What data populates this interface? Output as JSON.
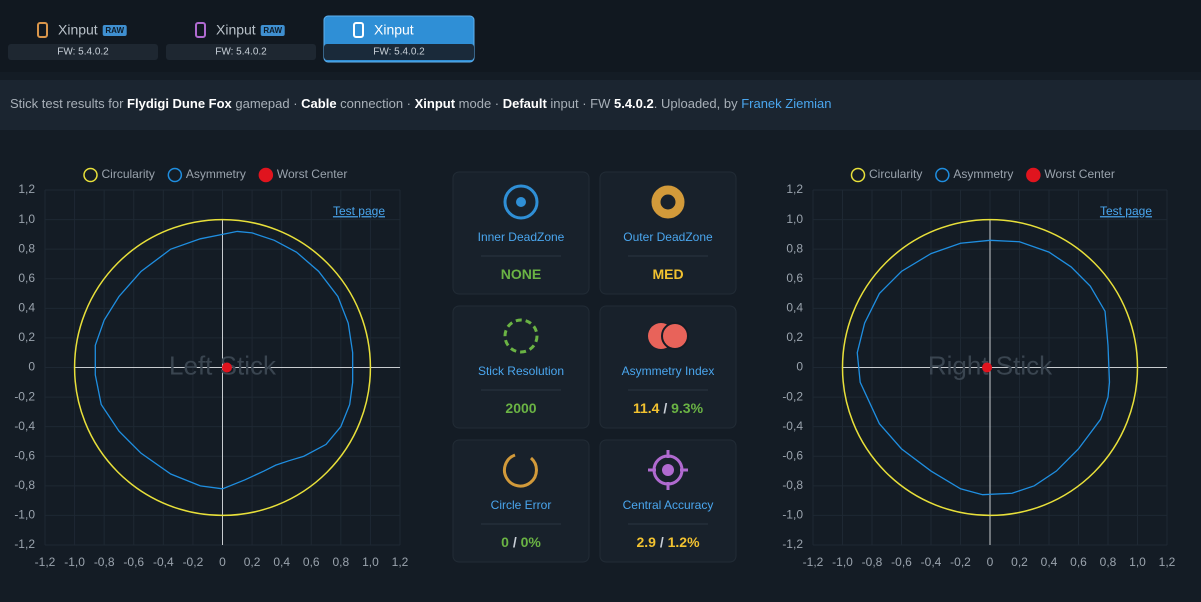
{
  "header": {
    "tabs": [
      {
        "label": "Xinput",
        "badge": "RAW",
        "fw": "FW: 5.4.0.2",
        "active": false,
        "icon_color": "#d9954a"
      },
      {
        "label": "Xinput",
        "badge": "RAW",
        "fw": "FW: 5.4.0.2",
        "active": false,
        "icon_color": "#b06ad0"
      },
      {
        "label": "Xinput",
        "fw": "FW: 5.4.0.2",
        "active": true,
        "icon_color": "#ffffff"
      }
    ]
  },
  "info": {
    "segments": [
      {
        "text": "Stick test results for ",
        "style": "normal"
      },
      {
        "text": "Flydigi Dune Fox",
        "style": "bold"
      },
      {
        "text": " gamepad · ",
        "style": "normal"
      },
      {
        "text": "Cable",
        "style": "bold"
      },
      {
        "text": " connection · ",
        "style": "normal"
      },
      {
        "text": "Xinput",
        "style": "bold"
      },
      {
        "text": " mode · ",
        "style": "normal"
      },
      {
        "text": "Default",
        "style": "bold"
      },
      {
        "text": " input · FW ",
        "style": "normal"
      },
      {
        "text": "5.4.0.2",
        "style": "bold"
      },
      {
        "text": ". Uploaded, by ",
        "style": "normal"
      },
      {
        "text": "Franek Ziemian",
        "style": "link"
      }
    ]
  },
  "cards": [
    {
      "label": "Inner DeadZone",
      "value": [
        {
          "text": "NONE",
          "color": "#6ab344"
        }
      ]
    },
    {
      "label": "Outer DeadZone",
      "value": [
        {
          "text": "MED",
          "color": "#f2c230"
        }
      ]
    },
    {
      "label": "Stick Resolution",
      "value": [
        {
          "text": "2000",
          "color": "#6ab344"
        }
      ]
    },
    {
      "label": "Asymmetry Index",
      "value": [
        {
          "text": "11.4",
          "color": "#f2c230"
        },
        {
          "text": " / ",
          "color": "#c8ced6"
        },
        {
          "text": "9.3%",
          "color": "#6ab344"
        }
      ]
    },
    {
      "label": "Circle Error",
      "value": [
        {
          "text": "0",
          "color": "#6ab344"
        },
        {
          "text": " / ",
          "color": "#c8ced6"
        },
        {
          "text": "0%",
          "color": "#6ab344"
        }
      ]
    },
    {
      "label": "Central Accuracy",
      "value": [
        {
          "text": "2.9",
          "color": "#f2c230"
        },
        {
          "text": " / ",
          "color": "#c8ced6"
        },
        {
          "text": "1.2%",
          "color": "#f2c230"
        }
      ]
    }
  ],
  "chart_data": [
    {
      "type": "line",
      "title": "Left Stick",
      "link": "Test page",
      "grid": true,
      "xlim": [
        -1.2,
        1.2
      ],
      "ylim": [
        -1.2,
        1.2
      ],
      "xticks": [
        {
          "value": -1.2,
          "label": "-1,2"
        },
        {
          "value": -1.0,
          "label": "-1,0"
        },
        {
          "value": -0.8,
          "label": "-0,8"
        },
        {
          "value": -0.6,
          "label": "-0,6"
        },
        {
          "value": -0.4,
          "label": "-0,4"
        },
        {
          "value": -0.2,
          "label": "-0,2"
        },
        0,
        {
          "value": 0.2,
          "label": "0,2"
        },
        {
          "value": 0.4,
          "label": "0,4"
        },
        {
          "value": 0.6,
          "label": "0,6"
        },
        {
          "value": 0.8,
          "label": "0,8"
        },
        {
          "value": 1.0,
          "label": "1,0"
        },
        {
          "value": 1.2,
          "label": "1,2"
        }
      ],
      "yticks": [
        {
          "value": -1.2,
          "label": "-1,2"
        },
        {
          "value": -1.0,
          "label": "-1,0"
        },
        {
          "value": -0.8,
          "label": "-0,8"
        },
        {
          "value": -0.6,
          "label": "-0,6"
        },
        {
          "value": -0.4,
          "label": "-0,4"
        },
        {
          "value": -0.2,
          "label": "-0,2"
        },
        0,
        {
          "value": 0.2,
          "label": "0,2"
        },
        {
          "value": 0.4,
          "label": "0,4"
        },
        {
          "value": 0.6,
          "label": "0,6"
        },
        {
          "value": 0.8,
          "label": "0,8"
        },
        {
          "value": 1.0,
          "label": "1,0"
        },
        {
          "value": 1.2,
          "label": "1,2"
        }
      ],
      "series": [
        {
          "name": "Circularity",
          "color": "#e8e03a",
          "radius": 1
        },
        {
          "name": "Asymmetry",
          "color": "#1f8ee0",
          "x": [
            0.0,
            0.1,
            0.2,
            0.35,
            0.5,
            0.65,
            0.78,
            0.85,
            0.88,
            0.88,
            0.86,
            0.8,
            0.7,
            0.55,
            0.45,
            0.36,
            0.28,
            0.15,
            0.0,
            -0.15,
            -0.35,
            -0.55,
            -0.7,
            -0.82,
            -0.86,
            -0.86,
            -0.8,
            -0.7,
            -0.55,
            -0.35,
            -0.15,
            0.0
          ],
          "y": [
            0.9,
            0.92,
            0.91,
            0.86,
            0.78,
            0.65,
            0.48,
            0.3,
            0.1,
            -0.1,
            -0.25,
            -0.4,
            -0.52,
            -0.6,
            -0.63,
            -0.66,
            -0.7,
            -0.76,
            -0.82,
            -0.8,
            -0.72,
            -0.58,
            -0.43,
            -0.25,
            -0.05,
            0.15,
            0.32,
            0.48,
            0.65,
            0.8,
            0.87,
            0.9
          ]
        },
        {
          "name": "Worst Center",
          "color": "#e0141e",
          "x": [
            0.03
          ],
          "y": [
            0
          ]
        }
      ]
    },
    {
      "type": "line",
      "title": "Right Stick",
      "link": "Test page",
      "grid": true,
      "xlim": [
        -1.2,
        1.2
      ],
      "ylim": [
        -1.2,
        1.2
      ],
      "xticks": [
        {
          "value": -1.2,
          "label": "-1,2"
        },
        {
          "value": -1.0,
          "label": "-1,0"
        },
        {
          "value": -0.8,
          "label": "-0,8"
        },
        {
          "value": -0.6,
          "label": "-0,6"
        },
        {
          "value": -0.4,
          "label": "-0,4"
        },
        {
          "value": -0.2,
          "label": "-0,2"
        },
        0,
        {
          "value": 0.2,
          "label": "0,2"
        },
        {
          "value": 0.4,
          "label": "0,4"
        },
        {
          "value": 0.6,
          "label": "0,6"
        },
        {
          "value": 0.8,
          "label": "0,8"
        },
        {
          "value": 1.0,
          "label": "1,0"
        },
        {
          "value": 1.2,
          "label": "1,2"
        }
      ],
      "yticks": [
        {
          "value": -1.2,
          "label": "-1,2"
        },
        {
          "value": -1.0,
          "label": "-1,0"
        },
        {
          "value": -0.8,
          "label": "-0,8"
        },
        {
          "value": -0.6,
          "label": "-0,6"
        },
        {
          "value": -0.4,
          "label": "-0,4"
        },
        {
          "value": -0.2,
          "label": "-0,2"
        },
        0,
        {
          "value": 0.2,
          "label": "0,2"
        },
        {
          "value": 0.4,
          "label": "0,4"
        },
        {
          "value": 0.6,
          "label": "0,6"
        },
        {
          "value": 0.8,
          "label": "0,8"
        },
        {
          "value": 1.0,
          "label": "1,0"
        },
        {
          "value": 1.2,
          "label": "1,2"
        }
      ],
      "series": [
        {
          "name": "Circularity",
          "color": "#e8e03a",
          "radius": 1
        },
        {
          "name": "Asymmetry",
          "color": "#1f8ee0",
          "x": [
            0.0,
            0.2,
            0.4,
            0.55,
            0.68,
            0.78,
            0.8,
            0.81,
            0.8,
            0.75,
            0.6,
            0.45,
            0.3,
            0.15,
            -0.05,
            -0.2,
            -0.4,
            -0.6,
            -0.75,
            -0.88,
            -0.9,
            -0.85,
            -0.75,
            -0.6,
            -0.4,
            -0.2,
            0.0
          ],
          "y": [
            0.86,
            0.85,
            0.78,
            0.68,
            0.55,
            0.38,
            0.15,
            -0.1,
            -0.2,
            -0.35,
            -0.55,
            -0.7,
            -0.8,
            -0.85,
            -0.86,
            -0.82,
            -0.7,
            -0.55,
            -0.38,
            -0.1,
            0.1,
            0.3,
            0.5,
            0.65,
            0.77,
            0.84,
            0.86
          ]
        },
        {
          "name": "Worst Center",
          "color": "#e0141e",
          "x": [
            -0.02
          ],
          "y": [
            0
          ]
        }
      ]
    }
  ]
}
